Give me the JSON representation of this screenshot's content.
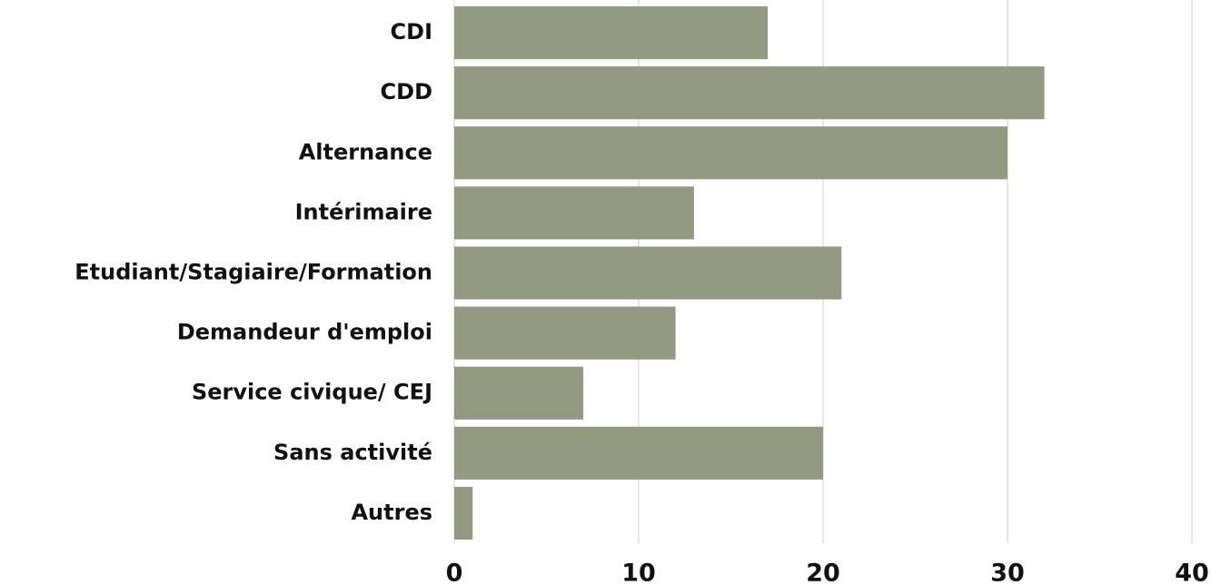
{
  "chart_data": {
    "type": "barh",
    "categories": [
      "CDI",
      "CDD",
      "Alternance",
      "Intérimaire",
      "Etudiant/Stagiaire/Formation",
      "Demandeur d'emploi",
      "Service civique/ CEJ",
      "Sans activité",
      "Autres"
    ],
    "values": [
      17,
      32,
      30,
      13,
      21,
      12,
      7,
      20,
      1
    ],
    "color": "#939a82",
    "xlim": [
      0,
      40
    ],
    "xticks": [
      0,
      10,
      20,
      30,
      40
    ],
    "grid": true
  }
}
